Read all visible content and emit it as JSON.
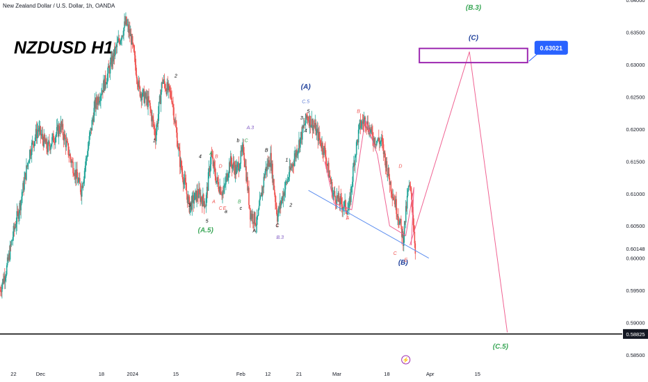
{
  "header": {
    "symbol_title": "New Zealand Dollar / U.S. Dollar, 1h, OANDA"
  },
  "chart_title": "NZDUSD H1",
  "colors": {
    "up_candle": "#26a69a",
    "down_candle": "#ef5350",
    "projection": "#f06292",
    "trendline": "#5b8def",
    "box": "#9c27b0",
    "hline": "#000000",
    "price_tag": "#2962ff"
  },
  "chart_data": {
    "type": "candlestick",
    "symbol": "NZDUSD",
    "timeframe": "1h",
    "ylim": [
      0.5835,
      0.64
    ],
    "y_ticks": [
      {
        "label": "0.64000",
        "v": 0.64
      },
      {
        "label": "0.63500",
        "v": 0.635
      },
      {
        "label": "0.63000",
        "v": 0.63
      },
      {
        "label": "0.62500",
        "v": 0.625
      },
      {
        "label": "0.62000",
        "v": 0.62
      },
      {
        "label": "0.61500",
        "v": 0.615
      },
      {
        "label": "0.61000",
        "v": 0.61
      },
      {
        "label": "0.60500",
        "v": 0.605
      },
      {
        "label": "0.60148",
        "v": 0.60148
      },
      {
        "label": "0.60000",
        "v": 0.6
      },
      {
        "label": "0.59500",
        "v": 0.595
      },
      {
        "label": "0.59000",
        "v": 0.59
      },
      {
        "label": "0.58825",
        "v": 0.58825,
        "highlight": true
      },
      {
        "label": "0.58500",
        "v": 0.585
      }
    ],
    "x_ticks": [
      {
        "label": "22",
        "bar": 10
      },
      {
        "label": "Dec",
        "bar": 30
      },
      {
        "label": "18",
        "bar": 75
      },
      {
        "label": "2024",
        "bar": 98
      },
      {
        "label": "15",
        "bar": 130
      },
      {
        "label": "Feb",
        "bar": 178
      },
      {
        "label": "12",
        "bar": 198
      },
      {
        "label": "21",
        "bar": 221
      },
      {
        "label": "Mar",
        "bar": 249
      },
      {
        "label": "18",
        "bar": 286
      },
      {
        "label": "Apr",
        "bar": 318
      },
      {
        "label": "15",
        "bar": 353
      }
    ],
    "bar_range": [
      0,
      460
    ],
    "price_path": [
      [
        0,
        0.595
      ],
      [
        5,
        0.5985
      ],
      [
        10,
        0.604
      ],
      [
        15,
        0.6085
      ],
      [
        22,
        0.6165
      ],
      [
        28,
        0.62
      ],
      [
        35,
        0.617
      ],
      [
        45,
        0.6205
      ],
      [
        52,
        0.6155
      ],
      [
        60,
        0.6105
      ],
      [
        70,
        0.6235
      ],
      [
        78,
        0.6275
      ],
      [
        85,
        0.632
      ],
      [
        93,
        0.6365
      ],
      [
        97,
        0.634
      ],
      [
        103,
        0.626
      ],
      [
        110,
        0.624
      ],
      [
        115,
        0.619
      ],
      [
        120,
        0.6275
      ],
      [
        127,
        0.625
      ],
      [
        133,
        0.615
      ],
      [
        140,
        0.608
      ],
      [
        146,
        0.61
      ],
      [
        152,
        0.6085
      ],
      [
        156,
        0.616
      ],
      [
        160,
        0.612
      ],
      [
        165,
        0.61
      ],
      [
        170,
        0.615
      ],
      [
        175,
        0.6135
      ],
      [
        180,
        0.617
      ],
      [
        185,
        0.607
      ],
      [
        190,
        0.6055
      ],
      [
        196,
        0.6135
      ],
      [
        200,
        0.6155
      ],
      [
        205,
        0.6065
      ],
      [
        210,
        0.6105
      ],
      [
        216,
        0.6145
      ],
      [
        222,
        0.6185
      ],
      [
        227,
        0.622
      ],
      [
        232,
        0.6205
      ],
      [
        240,
        0.6165
      ],
      [
        246,
        0.61
      ],
      [
        252,
        0.6085
      ],
      [
        258,
        0.6075
      ],
      [
        262,
        0.6155
      ],
      [
        266,
        0.6205
      ],
      [
        270,
        0.6215
      ],
      [
        276,
        0.6185
      ],
      [
        282,
        0.618
      ],
      [
        288,
        0.612
      ],
      [
        294,
        0.607
      ],
      [
        298,
        0.603
      ],
      [
        302,
        0.611
      ],
      [
        304,
        0.61
      ],
      [
        307,
        0.6015
      ]
    ],
    "last_price": 0.60148,
    "projection_path": [
      [
        303,
        0.602
      ],
      [
        347,
        0.632
      ],
      [
        375,
        0.5885
      ]
    ],
    "actual_swing_path": [
      [
        240,
        0.615
      ],
      [
        247,
        0.6085
      ],
      [
        260,
        0.6075
      ],
      [
        270,
        0.6215
      ],
      [
        279,
        0.616
      ],
      [
        288,
        0.605
      ],
      [
        300,
        0.6035
      ],
      [
        306,
        0.611
      ],
      [
        304,
        0.602
      ]
    ],
    "trendline": [
      [
        228,
        0.6105
      ],
      [
        317,
        0.6
      ]
    ],
    "target_box": {
      "bar_from": 310,
      "bar_to": 390,
      "y_top": 0.6325,
      "y_bottom": 0.6303
    },
    "target_price_tag": "0.63021",
    "horizontal_line": 0.58825,
    "annotations": [
      {
        "text": "(B.3)",
        "bar": 350,
        "y": 0.6385,
        "color": "#3aa757"
      },
      {
        "text": "(C)",
        "bar": 350,
        "y": 0.6338,
        "color": "#1e3f9a"
      },
      {
        "text": "(C.5)",
        "bar": 370,
        "y": 0.586,
        "color": "#3aa757"
      },
      {
        "text": "(A)",
        "bar": 226,
        "y": 0.6262,
        "color": "#1e3f9a"
      },
      {
        "text": "C.5",
        "bar": 226,
        "y": 0.624,
        "color": "#5b7bd5"
      },
      {
        "text": "(B)",
        "bar": 298,
        "y": 0.599,
        "color": "#1e3f9a"
      },
      {
        "text": "(A.5)",
        "bar": 152,
        "y": 0.604,
        "color": "#3aa757"
      },
      {
        "text": "A.3",
        "bar": 185,
        "y": 0.62,
        "color": "#7e57c2"
      },
      {
        "text": "B.3",
        "bar": 207,
        "y": 0.603,
        "color": "#7e57c2"
      },
      {
        "text": "C",
        "bar": 182,
        "y": 0.618,
        "color": "#3aa757"
      },
      {
        "text": "A",
        "bar": 156,
        "y": 0.616,
        "color": "#3aa757"
      },
      {
        "text": "B",
        "bar": 177,
        "y": 0.6085,
        "color": "#3aa757"
      },
      {
        "text": "2",
        "bar": 130,
        "y": 0.628,
        "color": "#000000"
      },
      {
        "text": "1",
        "bar": 114,
        "y": 0.618,
        "color": "#000000"
      },
      {
        "text": "4",
        "bar": 148,
        "y": 0.6155,
        "color": "#000000"
      },
      {
        "text": "3",
        "bar": 140,
        "y": 0.608,
        "color": "#000000"
      },
      {
        "text": "5",
        "bar": 153,
        "y": 0.6055,
        "color": "#000000"
      },
      {
        "text": "b",
        "bar": 176,
        "y": 0.618,
        "color": "#000000"
      },
      {
        "text": "a",
        "bar": 167,
        "y": 0.607,
        "color": "#000000"
      },
      {
        "text": "c",
        "bar": 178,
        "y": 0.6075,
        "color": "#000000"
      },
      {
        "text": "A",
        "bar": 188,
        "y": 0.604,
        "color": "#000000"
      },
      {
        "text": "B",
        "bar": 197,
        "y": 0.6165,
        "color": "#000000"
      },
      {
        "text": "C",
        "bar": 205,
        "y": 0.6048,
        "color": "#000000"
      },
      {
        "text": "2",
        "bar": 215,
        "y": 0.608,
        "color": "#000000"
      },
      {
        "text": "1",
        "bar": 212,
        "y": 0.615,
        "color": "#000000"
      },
      {
        "text": "4",
        "bar": 226,
        "y": 0.6195,
        "color": "#000000"
      },
      {
        "text": "3",
        "bar": 223,
        "y": 0.6215,
        "color": "#000000"
      },
      {
        "text": "5",
        "bar": 228,
        "y": 0.6225,
        "color": "#000000"
      },
      {
        "text": "B",
        "bar": 265,
        "y": 0.6225,
        "color": "#ef5350"
      },
      {
        "text": "A",
        "bar": 257,
        "y": 0.606,
        "color": "#ef5350"
      },
      {
        "text": "D",
        "bar": 296,
        "y": 0.614,
        "color": "#ef5350"
      },
      {
        "text": "C",
        "bar": 292,
        "y": 0.6005,
        "color": "#ef5350"
      },
      {
        "text": "E",
        "bar": 300,
        "y": 0.5995,
        "color": "#ef5350"
      },
      {
        "text": "B",
        "bar": 160,
        "y": 0.6155,
        "color": "#ef5350"
      },
      {
        "text": "A",
        "bar": 158,
        "y": 0.6085,
        "color": "#ef5350"
      },
      {
        "text": "C",
        "bar": 163,
        "y": 0.6075,
        "color": "#ef5350"
      },
      {
        "text": "E",
        "bar": 166,
        "y": 0.6075,
        "color": "#ef5350"
      },
      {
        "text": "D",
        "bar": 163,
        "y": 0.614,
        "color": "#ef5350"
      }
    ]
  }
}
